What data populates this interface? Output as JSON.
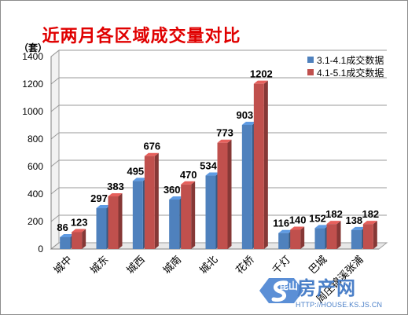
{
  "chart_data": {
    "type": "bar",
    "title": "近两月各区域成交量对比",
    "ylabel": "（套）",
    "ylim": [
      0,
      1400
    ],
    "yticks": [
      0,
      200,
      400,
      600,
      800,
      1000,
      1200,
      1400
    ],
    "grid": true,
    "legend_position": "top-right",
    "categories": [
      "城中",
      "城东",
      "城西",
      "城南",
      "城北",
      "花桥",
      "千灯",
      "巴城",
      "周庄锦溪张浦"
    ],
    "series": [
      {
        "name": "3.1-4.1成交数据",
        "color": "#4f81bd",
        "values": [
          86,
          297,
          495,
          360,
          534,
          903,
          116,
          152,
          138
        ]
      },
      {
        "name": "4.1-5.1成交数据",
        "color": "#c0504d",
        "values": [
          123,
          383,
          676,
          470,
          773,
          1202,
          140,
          182,
          182
        ]
      }
    ]
  },
  "watermark": {
    "site": "房产网",
    "logo_text": "昆山",
    "url": "HTTP://HOUSE.KS.JS.CN"
  }
}
